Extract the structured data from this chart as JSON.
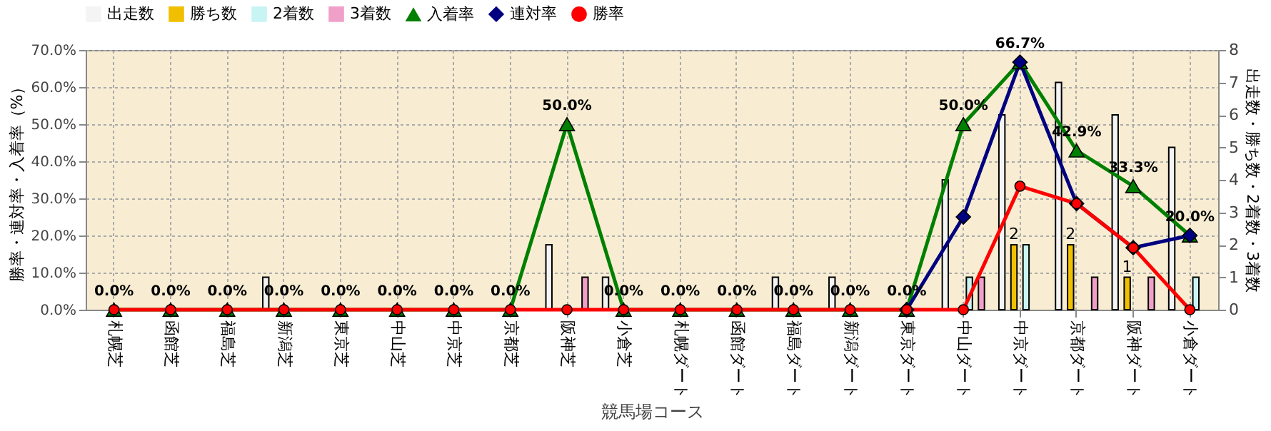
{
  "chart_data": {
    "type": "bar",
    "xlabel": "競馬場コース",
    "ylabel": "勝率・連対率・入着率（%）",
    "y2label": "出走数・勝ち数・2着数・3着数",
    "categories": [
      "札幌芝",
      "函館芝",
      "福島芝",
      "新潟芝",
      "東京芝",
      "中山芝",
      "中京芝",
      "京都芝",
      "阪神芝",
      "小倉芝",
      "札幌ダート",
      "函館ダート",
      "福島ダート",
      "新潟ダート",
      "東京ダート",
      "中山ダート",
      "中京ダート",
      "京都ダート",
      "阪神ダート",
      "小倉ダート"
    ],
    "series": [
      {
        "name": "出走数",
        "axis": "y2",
        "color": "#f4f4f4",
        "values": [
          0,
          0,
          0,
          1,
          0,
          0,
          0,
          0,
          2,
          1,
          0,
          0,
          1,
          1,
          0,
          4,
          6,
          7,
          6,
          5
        ]
      },
      {
        "name": "勝ち数",
        "axis": "y2",
        "color": "#f0c000",
        "values": [
          0,
          0,
          0,
          0,
          0,
          0,
          0,
          0,
          0,
          0,
          0,
          0,
          0,
          0,
          0,
          0,
          2,
          2,
          1,
          0
        ],
        "value_labels": [
          null,
          null,
          null,
          null,
          null,
          null,
          null,
          null,
          null,
          null,
          null,
          null,
          null,
          null,
          null,
          null,
          "2",
          "2",
          "1",
          null
        ]
      },
      {
        "name": "2着数",
        "axis": "y2",
        "color": "#c8f4f4",
        "values": [
          0,
          0,
          0,
          0,
          0,
          0,
          0,
          0,
          0,
          0,
          0,
          0,
          0,
          0,
          0,
          1,
          2,
          0,
          0,
          1
        ]
      },
      {
        "name": "3着数",
        "axis": "y2",
        "color": "#f0a0c8",
        "values": [
          0,
          0,
          0,
          0,
          0,
          0,
          0,
          0,
          1,
          0,
          0,
          0,
          0,
          0,
          0,
          1,
          0,
          1,
          1,
          0
        ]
      },
      {
        "name": "入着率",
        "type": "line",
        "marker": "triangle",
        "color": "#008000",
        "values": [
          0,
          0,
          0,
          0,
          0,
          0,
          0,
          0,
          50,
          0,
          0,
          0,
          0,
          0,
          0,
          50,
          66.7,
          42.9,
          33.3,
          20
        ],
        "value_labels": [
          "0.0%",
          "0.0%",
          "0.0%",
          "0.0%",
          "0.0%",
          "0.0%",
          "0.0%",
          "0.0%",
          "50.0%",
          "0.0%",
          "0.0%",
          "0.0%",
          "0.0%",
          "0.0%",
          "0.0%",
          "50.0%",
          "66.7%",
          "42.9%",
          "33.3%",
          "20.0%"
        ]
      },
      {
        "name": "連対率",
        "type": "line",
        "marker": "diamond",
        "color": "#000080",
        "values": [
          null,
          null,
          null,
          null,
          null,
          null,
          null,
          null,
          null,
          null,
          null,
          null,
          null,
          null,
          0,
          25,
          66.7,
          28.6,
          16.7,
          20
        ]
      },
      {
        "name": "勝率",
        "type": "line",
        "marker": "circle",
        "color": "#ff0000",
        "values": [
          0,
          0,
          0,
          0,
          0,
          0,
          0,
          0,
          0,
          0,
          0,
          0,
          0,
          0,
          0,
          0,
          33.3,
          28.6,
          16.7,
          0
        ]
      }
    ],
    "ylim": [
      0,
      70
    ],
    "yticks": [
      {
        "value": 0,
        "label": "0.0%"
      },
      {
        "value": 10,
        "label": "10.0%"
      },
      {
        "value": 20,
        "label": "20.0%"
      },
      {
        "value": 30,
        "label": "30.0%"
      },
      {
        "value": 40,
        "label": "40.0%"
      },
      {
        "value": 50,
        "label": "50.0%"
      },
      {
        "value": 60,
        "label": "60.0%"
      },
      {
        "value": 70,
        "label": "70.0%"
      }
    ],
    "y2lim": [
      0,
      8
    ],
    "y2ticks": [
      0,
      1,
      2,
      3,
      4,
      5,
      6,
      7,
      8
    ],
    "grid": true,
    "legend": "top"
  }
}
